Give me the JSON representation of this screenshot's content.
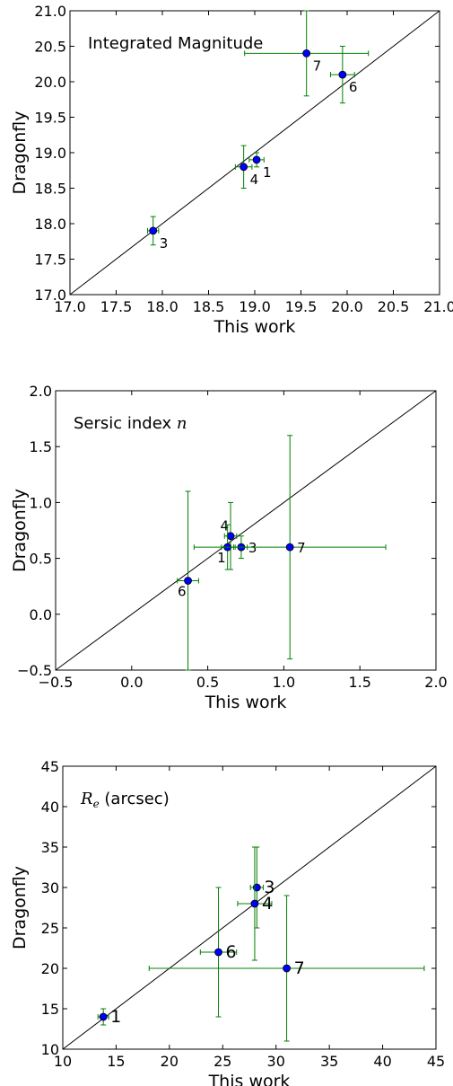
{
  "chart_data": [
    {
      "type": "scatter",
      "title": "Integrated Magnitude",
      "xlabel": "This work",
      "ylabel": "Dragonfly",
      "xlim": [
        17.0,
        21.0
      ],
      "ylim": [
        17.0,
        21.0
      ],
      "xticks": [
        17.0,
        17.5,
        18.0,
        18.5,
        19.0,
        19.5,
        20.0,
        20.5,
        21.0
      ],
      "yticks": [
        17.0,
        17.5,
        18.0,
        18.5,
        19.0,
        19.5,
        20.0,
        20.5,
        21.0
      ],
      "tick_decimals": 1,
      "one_to_one_line": true,
      "grid": false,
      "marker_color": "#0000ff",
      "errorbar_color": "#008000",
      "label_size": "small",
      "points": [
        {
          "label": "1",
          "x": 19.02,
          "y": 18.9,
          "xerr": 0.08,
          "yerr": 0.1,
          "label_pos": "right-below"
        },
        {
          "label": "4",
          "x": 18.88,
          "y": 18.8,
          "xerr": 0.09,
          "yerr": 0.3,
          "label_pos": "right-below"
        },
        {
          "label": "3",
          "x": 17.9,
          "y": 17.9,
          "xerr": 0.06,
          "yerr": 0.2,
          "label_pos": "right-below"
        },
        {
          "label": "7",
          "x": 19.56,
          "y": 20.4,
          "xerr": 0.67,
          "yerr": 0.6,
          "label_pos": "right-below"
        },
        {
          "label": "6",
          "x": 19.95,
          "y": 20.1,
          "xerr": 0.13,
          "yerr": 0.4,
          "label_pos": "right-below"
        }
      ]
    },
    {
      "type": "scatter",
      "title": "Sersic index",
      "title_math": "n",
      "xlabel": "This work",
      "ylabel": "Dragonfly",
      "xlim": [
        -0.5,
        2.0
      ],
      "ylim": [
        -0.5,
        2.0
      ],
      "xticks": [
        -0.5,
        0.0,
        0.5,
        1.0,
        1.5,
        2.0
      ],
      "yticks": [
        -0.5,
        0.0,
        0.5,
        1.0,
        1.5,
        2.0
      ],
      "tick_decimals": 1,
      "one_to_one_line": true,
      "grid": false,
      "marker_color": "#0000ff",
      "errorbar_color": "#008000",
      "label_size": "small",
      "points": [
        {
          "label": "4",
          "x": 0.65,
          "y": 0.7,
          "xerr": 0.04,
          "yerr": 0.3,
          "label_pos": "left-above"
        },
        {
          "label": "3",
          "x": 0.72,
          "y": 0.6,
          "xerr": 0.04,
          "yerr": 0.1,
          "label_pos": "right"
        },
        {
          "label": "1",
          "x": 0.63,
          "y": 0.6,
          "xerr": 0.04,
          "yerr": 0.2,
          "label_pos": "left-below"
        },
        {
          "label": "7",
          "x": 1.04,
          "y": 0.6,
          "xerr": 0.63,
          "yerr": 1.0,
          "label_pos": "right"
        },
        {
          "label": "6",
          "x": 0.37,
          "y": 0.3,
          "xerr": 0.07,
          "yerr": 0.8,
          "label_pos": "left-below"
        }
      ]
    },
    {
      "type": "scatter",
      "title": "(arcsec)",
      "title_math": "R",
      "title_math_sub": "e",
      "xlabel": "This work",
      "ylabel": "Dragonfly",
      "xlim": [
        10,
        45
      ],
      "ylim": [
        10,
        45
      ],
      "xticks": [
        10,
        15,
        20,
        25,
        30,
        35,
        40,
        45
      ],
      "yticks": [
        10,
        15,
        20,
        25,
        30,
        35,
        40,
        45
      ],
      "tick_decimals": 0,
      "one_to_one_line": true,
      "grid": false,
      "marker_color": "#0000ff",
      "errorbar_color": "#008000",
      "label_size": "large",
      "points": [
        {
          "label": "3",
          "x": 28.2,
          "y": 30.0,
          "xerr": 0.6,
          "yerr": 5.0,
          "label_pos": "right"
        },
        {
          "label": "4",
          "x": 28.0,
          "y": 28.0,
          "xerr": 1.6,
          "yerr": 7.0,
          "label_pos": "right"
        },
        {
          "label": "6",
          "x": 24.6,
          "y": 22.0,
          "xerr": 1.7,
          "yerr": 8.0,
          "label_pos": "right"
        },
        {
          "label": "7",
          "x": 31.0,
          "y": 20.0,
          "xerr": 12.9,
          "yerr": 9.0,
          "label_pos": "right"
        },
        {
          "label": "1",
          "x": 13.8,
          "y": 14.0,
          "xerr": 0.5,
          "yerr": 1.0,
          "label_pos": "right"
        }
      ]
    }
  ]
}
